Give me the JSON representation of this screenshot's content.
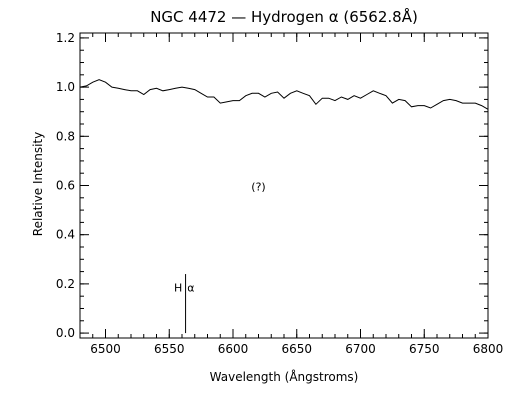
{
  "chart_data": {
    "type": "line",
    "title": "NGC 4472 — Hydrogen α (6562.8Å)",
    "xlabel": "Wavelength (Ångstroms)",
    "ylabel": "Relative Intensity",
    "xlim": [
      6480,
      6800
    ],
    "ylim": [
      -0.02,
      1.22
    ],
    "x_ticks": [
      6500,
      6550,
      6600,
      6650,
      6700,
      6750,
      6800
    ],
    "x_tick_labels": [
      "6500",
      "6550",
      "6600",
      "6650",
      "6700",
      "6750",
      "6800"
    ],
    "y_ticks": [
      0.0,
      0.2,
      0.4,
      0.6,
      0.8,
      1.0,
      1.2
    ],
    "y_tick_labels": [
      "0.0",
      "0.2",
      "0.4",
      "0.6",
      "0.8",
      "1.0",
      "1.2"
    ],
    "x_minor_step": 10,
    "y_minor_step": 0.05,
    "grid": false,
    "series": [
      {
        "x": [
          6480,
          6485,
          6490,
          6495,
          6500,
          6505,
          6510,
          6515,
          6520,
          6525,
          6530,
          6535,
          6540,
          6545,
          6550,
          6555,
          6560,
          6565,
          6570,
          6575,
          6580,
          6585,
          6590,
          6595,
          6600,
          6605,
          6610,
          6615,
          6620,
          6625,
          6630,
          6635,
          6640,
          6645,
          6650,
          6655,
          6660,
          6665,
          6670,
          6675,
          6680,
          6685,
          6690,
          6695,
          6700,
          6705,
          6710,
          6715,
          6720,
          6725,
          6730,
          6735,
          6740,
          6745,
          6750,
          6755,
          6760,
          6765,
          6770,
          6775,
          6780,
          6785,
          6790,
          6795,
          6800
        ],
        "values": [
          1.0,
          1.005,
          1.02,
          1.03,
          1.02,
          1.0,
          0.995,
          0.99,
          0.985,
          0.985,
          0.97,
          0.99,
          0.995,
          0.985,
          0.99,
          0.995,
          1.0,
          0.995,
          0.99,
          0.975,
          0.96,
          0.96,
          0.935,
          0.94,
          0.945,
          0.945,
          0.965,
          0.975,
          0.975,
          0.96,
          0.975,
          0.98,
          0.955,
          0.975,
          0.985,
          0.975,
          0.965,
          0.93,
          0.955,
          0.955,
          0.945,
          0.96,
          0.95,
          0.965,
          0.955,
          0.97,
          0.985,
          0.975,
          0.965,
          0.935,
          0.95,
          0.945,
          0.92,
          0.925,
          0.925,
          0.915,
          0.93,
          0.945,
          0.95,
          0.945,
          0.935,
          0.935,
          0.935,
          0.925,
          0.91
        ]
      }
    ],
    "annotations": [
      {
        "text": "(?)",
        "x": 6620,
        "y": 0.58
      },
      {
        "text": "H",
        "x": 6557,
        "y": 0.17
      },
      {
        "text": "α",
        "x": 6567,
        "y": 0.17
      }
    ],
    "marker": {
      "x": 6562.8,
      "y0": 0.0,
      "y1": 0.24
    }
  }
}
